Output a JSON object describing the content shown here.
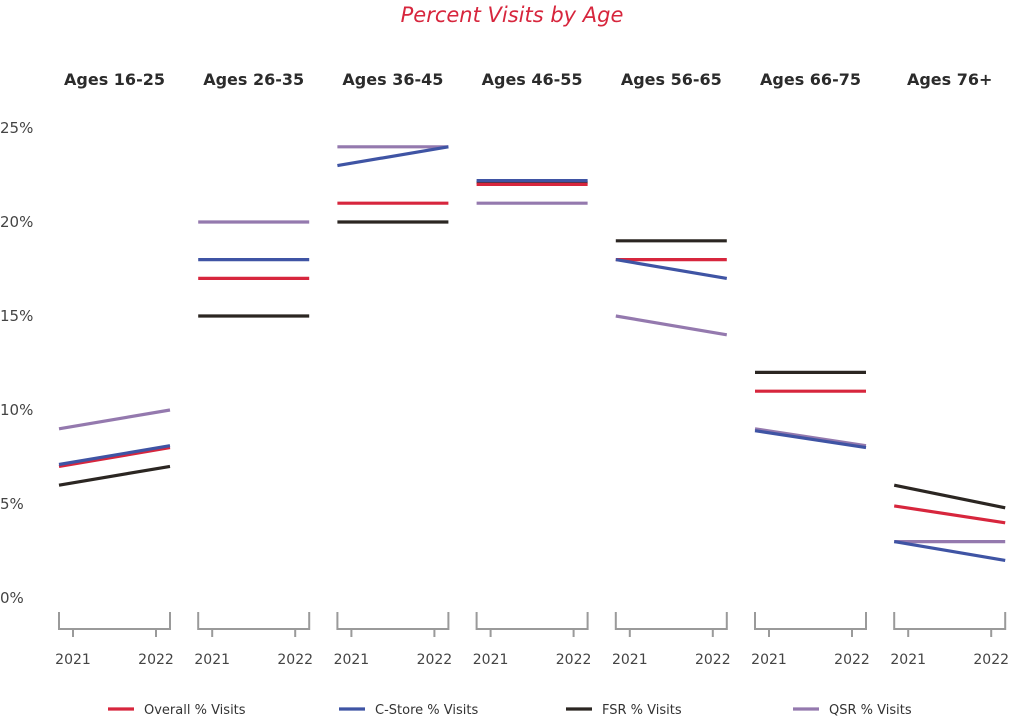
{
  "chart_data": {
    "type": "line",
    "title": "Percent Visits by Age",
    "ylim": [
      0,
      25
    ],
    "yticks": [
      "0%",
      "5%",
      "10%",
      "15%",
      "20%",
      "25%"
    ],
    "ytick_values": [
      0,
      5,
      10,
      15,
      20,
      25
    ],
    "x": [
      "2021",
      "2022"
    ],
    "grid": false,
    "legend_position": "bottom",
    "panels": [
      {
        "label": "Ages 16-25",
        "series": {
          "Overall % Visits": [
            7.0,
            8.0
          ],
          "C-Store % Visits": [
            7.1,
            8.1
          ],
          "FSR % Visits": [
            6.0,
            7.0
          ],
          "QSR % Visits": [
            9.0,
            10.0
          ]
        }
      },
      {
        "label": "Ages 26-35",
        "series": {
          "Overall % Visits": [
            17.0,
            17.0
          ],
          "C-Store % Visits": [
            18.0,
            18.0
          ],
          "FSR % Visits": [
            15.0,
            15.0
          ],
          "QSR % Visits": [
            20.0,
            20.0
          ]
        }
      },
      {
        "label": "Ages 36-45",
        "series": {
          "Overall % Visits": [
            21.0,
            21.0
          ],
          "C-Store % Visits": [
            23.0,
            24.0
          ],
          "FSR % Visits": [
            20.0,
            20.0
          ],
          "QSR % Visits": [
            24.0,
            24.0
          ]
        }
      },
      {
        "label": "Ages 46-55",
        "series": {
          "Overall % Visits": [
            22.0,
            22.0
          ],
          "C-Store % Visits": [
            22.2,
            22.2
          ],
          "FSR % Visits": [
            22.1,
            22.1
          ],
          "QSR % Visits": [
            21.0,
            21.0
          ]
        }
      },
      {
        "label": "Ages 56-65",
        "series": {
          "Overall % Visits": [
            18.0,
            18.0
          ],
          "C-Store % Visits": [
            18.0,
            17.0
          ],
          "FSR % Visits": [
            19.0,
            19.0
          ],
          "QSR % Visits": [
            15.0,
            14.0
          ]
        }
      },
      {
        "label": "Ages 66-75",
        "series": {
          "Overall % Visits": [
            11.0,
            11.0
          ],
          "C-Store % Visits": [
            8.9,
            8.0
          ],
          "FSR % Visits": [
            12.0,
            12.0
          ],
          "QSR % Visits": [
            9.0,
            8.1
          ]
        }
      },
      {
        "label": "Ages 76+",
        "series": {
          "Overall % Visits": [
            4.9,
            4.0
          ],
          "C-Store % Visits": [
            3.0,
            2.0
          ],
          "FSR % Visits": [
            6.0,
            4.8
          ],
          "QSR % Visits": [
            3.0,
            3.0
          ]
        }
      }
    ],
    "legend": [
      {
        "name": "Overall % Visits",
        "color": "#d7263d"
      },
      {
        "name": "C-Store % Visits",
        "color": "#3f54a4"
      },
      {
        "name": "FSR % Visits",
        "color": "#2b2622"
      },
      {
        "name": "QSR % Visits",
        "color": "#9479ae"
      }
    ]
  }
}
